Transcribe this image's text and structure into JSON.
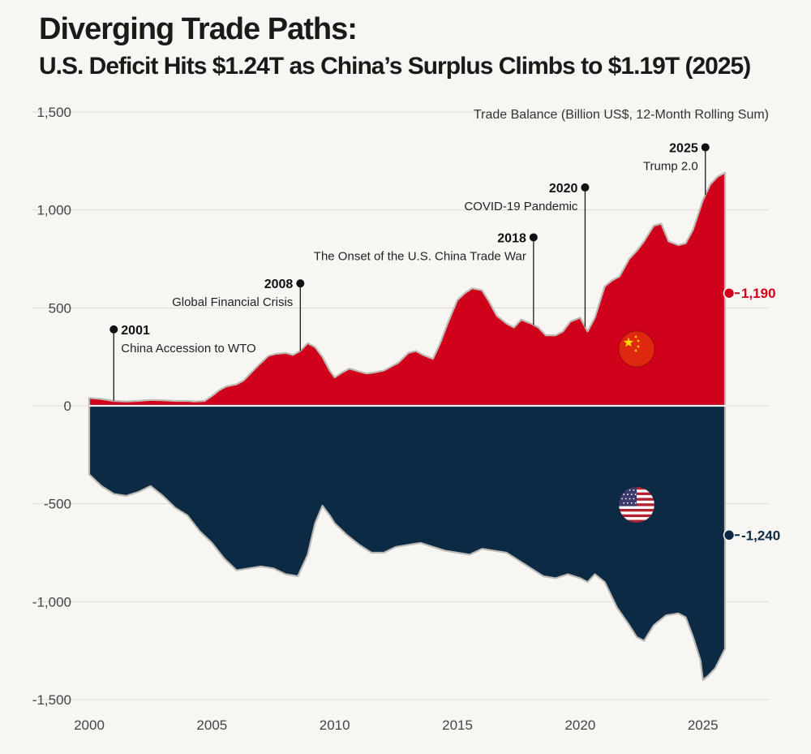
{
  "header": {
    "title": "Diverging Trade Paths:",
    "subtitle": "U.S. Deficit Hits $1.24T as China’s Surplus Climbs to $1.19T (2025)"
  },
  "colors": {
    "china": "#d0021b",
    "us": "#0c2a44",
    "grid": "#dcdad5",
    "text": "#1a1a1a",
    "axis_text": "#444444",
    "background": "#f8f6f2"
  },
  "chart_data": {
    "type": "area",
    "title": "Diverging Trade Paths:",
    "subtitle": "U.S. Deficit Hits $1.24T as China’s Surplus Climbs to $1.19T (2025)",
    "ylabel": "Trade Balance (Billion US$, 12-Month Rolling Sum)",
    "xlim": [
      2000,
      2026
    ],
    "ylim": [
      -1500,
      1500
    ],
    "x_ticks": [
      2000,
      2005,
      2010,
      2015,
      2020,
      2025
    ],
    "x_tick_labels": [
      "2000",
      "2005",
      "2010",
      "2015",
      "2020",
      "2025"
    ],
    "y_ticks": [
      1500,
      1000,
      500,
      0,
      -500,
      -1000,
      -1500
    ],
    "y_tick_labels": [
      "1,500",
      "1,000",
      "500",
      "0",
      "-500",
      "-1,000",
      "-1,500"
    ],
    "grid": true,
    "series": [
      {
        "name": "China trade surplus",
        "color": "#d0021b",
        "end_label": "1,190",
        "x": [
          2000,
          2000.5,
          2001,
          2001.5,
          2002,
          2002.5,
          2003,
          2003.5,
          2004,
          2004.3,
          2004.7,
          2005,
          2005.3,
          2005.6,
          2006,
          2006.3,
          2006.6,
          2007,
          2007.3,
          2007.6,
          2008,
          2008.3,
          2008.6,
          2008.9,
          2009.2,
          2009.5,
          2009.8,
          2010,
          2010.3,
          2010.6,
          2011,
          2011.3,
          2011.6,
          2012,
          2012.3,
          2012.6,
          2013,
          2013.3,
          2013.6,
          2014,
          2014.3,
          2014.6,
          2015,
          2015.3,
          2015.6,
          2016,
          2016.3,
          2016.6,
          2017,
          2017.3,
          2017.6,
          2018,
          2018.3,
          2018.6,
          2019,
          2019.3,
          2019.6,
          2020,
          2020.3,
          2020.6,
          2021,
          2021.3,
          2021.6,
          2022,
          2022.3,
          2022.6,
          2023,
          2023.3,
          2023.6,
          2024,
          2024.3,
          2024.6,
          2025,
          2025.3,
          2025.6,
          2025.9
        ],
        "values": [
          40,
          35,
          25,
          22,
          25,
          30,
          28,
          25,
          25,
          22,
          25,
          50,
          80,
          100,
          110,
          130,
          170,
          220,
          255,
          265,
          270,
          260,
          280,
          320,
          300,
          250,
          180,
          145,
          170,
          190,
          175,
          165,
          170,
          180,
          200,
          220,
          270,
          280,
          260,
          240,
          320,
          420,
          540,
          575,
          600,
          590,
          530,
          460,
          420,
          400,
          440,
          420,
          400,
          360,
          360,
          380,
          430,
          450,
          380,
          450,
          610,
          640,
          660,
          750,
          790,
          840,
          920,
          930,
          840,
          820,
          830,
          900,
          1050,
          1130,
          1170,
          1190
        ]
      },
      {
        "name": "U.S. trade balance",
        "color": "#0c2a44",
        "end_label": "-1,240",
        "x": [
          2000,
          2000.5,
          2001,
          2001.5,
          2002,
          2002.5,
          2003,
          2003.5,
          2004,
          2004.5,
          2005,
          2005.5,
          2006,
          2006.5,
          2007,
          2007.5,
          2008,
          2008.5,
          2008.9,
          2009.2,
          2009.5,
          2009.8,
          2010,
          2010.5,
          2011,
          2011.5,
          2012,
          2012.5,
          2013,
          2013.5,
          2014,
          2014.5,
          2015,
          2015.5,
          2016,
          2016.5,
          2017,
          2017.5,
          2018,
          2018.5,
          2019,
          2019.5,
          2020,
          2020.3,
          2020.6,
          2021,
          2021.5,
          2022,
          2022.3,
          2022.6,
          2023,
          2023.5,
          2024,
          2024.3,
          2024.6,
          2024.9,
          2025,
          2025.2,
          2025.5,
          2025.9
        ],
        "values": [
          -350,
          -410,
          -450,
          -460,
          -440,
          -410,
          -460,
          -520,
          -560,
          -640,
          -700,
          -780,
          -840,
          -830,
          -820,
          -830,
          -860,
          -870,
          -760,
          -600,
          -510,
          -560,
          -600,
          -660,
          -710,
          -750,
          -750,
          -720,
          -710,
          -700,
          -720,
          -740,
          -750,
          -760,
          -730,
          -740,
          -750,
          -790,
          -830,
          -870,
          -880,
          -860,
          -880,
          -900,
          -860,
          -900,
          -1030,
          -1120,
          -1180,
          -1200,
          -1120,
          -1070,
          -1060,
          -1080,
          -1180,
          -1300,
          -1400,
          -1380,
          -1340,
          -1240
        ]
      }
    ],
    "annotations": [
      {
        "year_label": "2001",
        "text": "China Accession to WTO",
        "x": 2001.0,
        "y": 390,
        "anchor": "start"
      },
      {
        "year_label": "2008",
        "text": "Global Financial Crisis",
        "x": 2008.6,
        "y": 625,
        "anchor": "end"
      },
      {
        "year_label": "2018",
        "text": "The Onset of the U.S. China Trade War",
        "x": 2018.1,
        "y": 860,
        "anchor": "end"
      },
      {
        "year_label": "2020",
        "text": "COVID-19 Pandemic",
        "x": 2020.2,
        "y": 1115,
        "anchor": "end"
      },
      {
        "year_label": "2025",
        "text": "Trump 2.0",
        "x": 2025.1,
        "y": 1320,
        "anchor": "end"
      }
    ],
    "flags": [
      {
        "name": "China",
        "icon": "china-flag-icon",
        "x": 2022.3,
        "y": 290
      },
      {
        "name": "United States",
        "icon": "us-flag-icon",
        "x": 2022.3,
        "y": -505
      }
    ]
  }
}
